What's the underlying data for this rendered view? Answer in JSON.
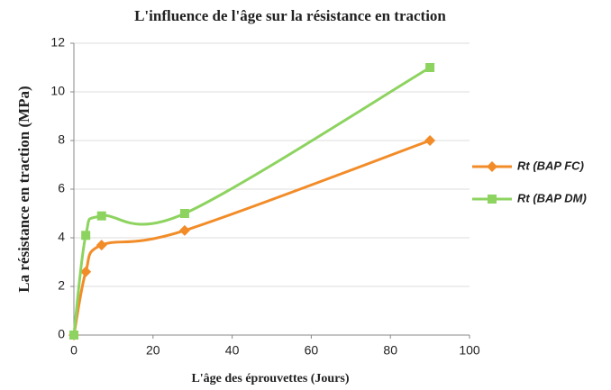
{
  "chart_data": {
    "type": "line",
    "title": "L'influence de l'âge sur la résistance en traction",
    "xlabel": "L'âge des éprouvettes (Jours)",
    "ylabel": "La résistance en traction (MPa)",
    "x": [
      0,
      3,
      7,
      28,
      90
    ],
    "series": [
      {
        "name": "Rt (BAP FC)",
        "color": "#f28c28",
        "marker": "diamond",
        "values": [
          0,
          2.6,
          3.7,
          4.3,
          8.0
        ]
      },
      {
        "name": "Rt (BAP DM)",
        "color": "#8dd35f",
        "marker": "square",
        "values": [
          0,
          4.1,
          4.9,
          5.0,
          11.0
        ]
      }
    ],
    "xlim": [
      0,
      100
    ],
    "xticks": [
      0,
      20,
      40,
      60,
      80,
      100
    ],
    "ylim": [
      0,
      12
    ],
    "yticks": [
      0,
      2,
      4,
      6,
      8,
      10,
      12
    ],
    "grid": true,
    "legend": "right"
  }
}
